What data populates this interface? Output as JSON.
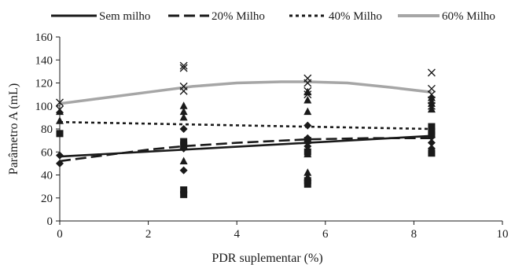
{
  "chart_data": {
    "type": "scatter",
    "xlabel": "PDR suplementar (%)",
    "ylabel": "Parâmetro A (mL)",
    "xlim": [
      0,
      10
    ],
    "ylim": [
      0,
      160
    ],
    "xticks": [
      0,
      2,
      4,
      6,
      8,
      10
    ],
    "yticks": [
      0,
      20,
      40,
      60,
      80,
      100,
      120,
      140,
      160
    ],
    "grid": false,
    "legend_position": "top",
    "colors": {
      "text": "#1a1a1a",
      "line_dark": "#1a1a1a",
      "line_grey": "#a6a6a6"
    },
    "series": [
      {
        "name": "Sem milho",
        "marker": "diamond",
        "line_style": "solid",
        "color": "#1a1a1a",
        "fit": [
          [
            0,
            56
          ],
          [
            2.8,
            62
          ],
          [
            5.6,
            68
          ],
          [
            8.4,
            74
          ]
        ],
        "points": [
          [
            0,
            57
          ],
          [
            0,
            50
          ],
          [
            2.8,
            44
          ],
          [
            2.8,
            63
          ],
          [
            2.8,
            80
          ],
          [
            5.6,
            65
          ],
          [
            5.6,
            72
          ],
          [
            5.6,
            83
          ],
          [
            8.4,
            63
          ],
          [
            8.4,
            68
          ],
          [
            8.4,
            73
          ]
        ]
      },
      {
        "name": "20% Milho",
        "marker": "square",
        "line_style": "long-dash",
        "color": "#1a1a1a",
        "fit": [
          [
            0,
            52
          ],
          [
            1,
            57
          ],
          [
            2,
            62
          ],
          [
            2.8,
            65
          ],
          [
            4,
            68
          ],
          [
            5.6,
            71
          ],
          [
            7,
            72
          ],
          [
            8.4,
            72
          ]
        ],
        "points": [
          [
            0,
            76
          ],
          [
            2.8,
            23
          ],
          [
            2.8,
            27
          ],
          [
            2.8,
            66
          ],
          [
            2.8,
            69
          ],
          [
            5.6,
            32
          ],
          [
            5.6,
            35
          ],
          [
            5.6,
            60
          ],
          [
            5.6,
            70
          ],
          [
            8.4,
            59
          ],
          [
            8.4,
            75
          ],
          [
            8.4,
            78
          ],
          [
            8.4,
            82
          ]
        ]
      },
      {
        "name": "40% Milho",
        "marker": "triangle",
        "line_style": "short-dash",
        "color": "#1a1a1a",
        "fit": [
          [
            0,
            86
          ],
          [
            2.8,
            84
          ],
          [
            5.6,
            82
          ],
          [
            8.4,
            80
          ]
        ],
        "points": [
          [
            0,
            87
          ],
          [
            0,
            95
          ],
          [
            2.8,
            52
          ],
          [
            2.8,
            90
          ],
          [
            2.8,
            95
          ],
          [
            2.8,
            100
          ],
          [
            5.6,
            38
          ],
          [
            5.6,
            42
          ],
          [
            5.6,
            58
          ],
          [
            5.6,
            95
          ],
          [
            5.6,
            105
          ],
          [
            5.6,
            112
          ],
          [
            8.4,
            97
          ],
          [
            8.4,
            102
          ],
          [
            8.4,
            107
          ]
        ]
      },
      {
        "name": "60% Milho",
        "marker": "x",
        "line_style": "grey",
        "color": "#a6a6a6",
        "fit": [
          [
            0,
            102
          ],
          [
            1,
            107
          ],
          [
            2,
            112
          ],
          [
            3,
            117
          ],
          [
            4,
            120
          ],
          [
            5,
            121
          ],
          [
            5.6,
            121
          ],
          [
            6.5,
            120
          ],
          [
            7.5,
            116
          ],
          [
            8.4,
            112
          ]
        ],
        "points": [
          [
            0,
            97
          ],
          [
            0,
            103
          ],
          [
            2.8,
            113
          ],
          [
            2.8,
            117
          ],
          [
            2.8,
            133
          ],
          [
            2.8,
            135
          ],
          [
            5.6,
            110
          ],
          [
            5.6,
            113
          ],
          [
            5.6,
            120
          ],
          [
            5.6,
            124
          ],
          [
            8.4,
            100
          ],
          [
            8.4,
            105
          ],
          [
            8.4,
            110
          ],
          [
            8.4,
            115
          ],
          [
            8.4,
            129
          ]
        ]
      }
    ]
  }
}
